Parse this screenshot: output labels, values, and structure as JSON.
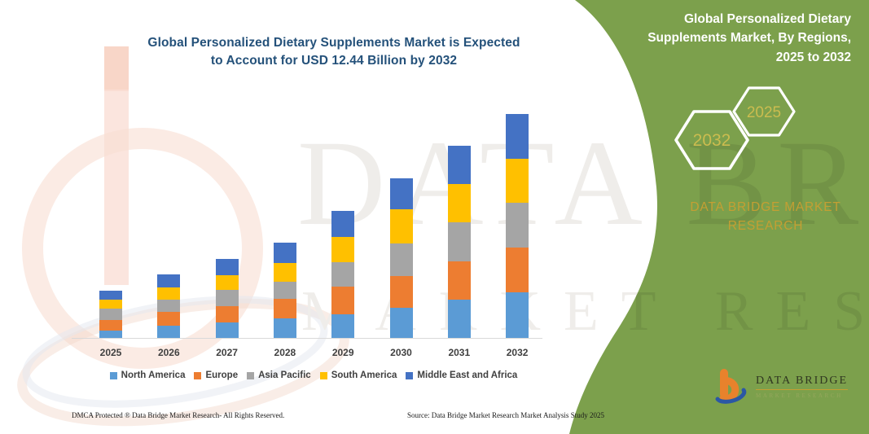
{
  "title": {
    "line1": "Global Personalized Dietary Supplements Market is Expected",
    "line2": "to Account for USD 12.44 Billion by 2032"
  },
  "chart_data": {
    "type": "bar",
    "stacked": true,
    "title": "Global Personalized Dietary Supplements Market is Expected to Account for USD 12.44 Billion by 2032",
    "unit": "USD Billion",
    "categories": [
      "2025",
      "2026",
      "2027",
      "2028",
      "2029",
      "2030",
      "2031",
      "2032"
    ],
    "series": [
      {
        "name": "North America",
        "color": "#5B9BD5",
        "values": [
          0.47,
          0.72,
          0.9,
          1.13,
          1.35,
          1.73,
          2.15,
          2.55
        ]
      },
      {
        "name": "Europe",
        "color": "#ED7D31",
        "values": [
          0.56,
          0.75,
          0.9,
          1.07,
          1.53,
          1.73,
          2.13,
          2.52
        ]
      },
      {
        "name": "Asia Pacific",
        "color": "#A5A5A5",
        "values": [
          0.63,
          0.68,
          0.9,
          0.96,
          1.35,
          1.8,
          2.15,
          2.48
        ]
      },
      {
        "name": "South America",
        "color": "#FFC000",
        "values": [
          0.5,
          0.71,
          0.84,
          1.02,
          1.4,
          1.92,
          2.15,
          2.4
        ]
      },
      {
        "name": "Middle East and Africa",
        "color": "#4472C4",
        "values": [
          0.48,
          0.69,
          0.89,
          1.13,
          1.46,
          1.7,
          2.12,
          2.49
        ]
      }
    ],
    "totals": [
      2.64,
      3.55,
      4.43,
      5.31,
      7.09,
      8.88,
      10.7,
      12.44
    ],
    "legend_position": "bottom",
    "gridlines": false,
    "y_axis_visible": false
  },
  "panel": {
    "title_line1": "Global Personalized Dietary",
    "title_line2": "Supplements Market, By Regions,",
    "title_line3": "2025 to 2032",
    "hexagon_left_year": "2032",
    "hexagon_right_year": "2025",
    "brand_line1": "DATA BRIDGE MARKET",
    "brand_line2": "RESEARCH",
    "logo_wordmark": "DATA BRIDGE",
    "logo_subtext": "MARKET RESEARCH"
  },
  "watermark": {
    "line1": "DATA BRIDGE",
    "line2": "MARKET RESEARCH"
  },
  "footer": {
    "dmca": "DMCA Protected ® Data Bridge Market Research-  All Rights Reserved.",
    "source": "Source: Data Bridge Market Research  Market Analysis Study 2025"
  },
  "colors": {
    "green_panel": "#7CA04C",
    "gold": "#C49F33",
    "hex_gold": "#CBBC4F",
    "title_blue": "#24517A",
    "legend_text": "#404040",
    "logo_orange": "#E8822C",
    "logo_blue": "#2B57A5"
  }
}
